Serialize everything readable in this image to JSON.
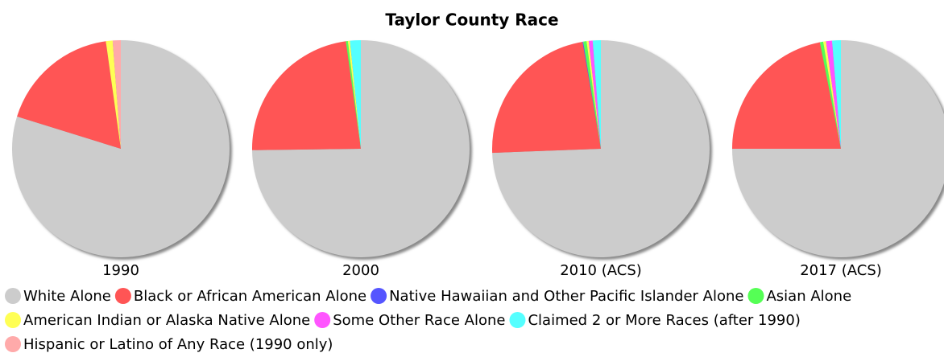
{
  "chart_data": {
    "type": "pie",
    "title": "Taylor County Race",
    "categories": [
      "White Alone",
      "Black or African American Alone",
      "Native Hawaiian and Other Pacific Islander Alone",
      "Asian Alone",
      "American Indian or Alaska Native Alone",
      "Some Other Race Alone",
      "Claimed 2 or More Races (after 1990)",
      "Hispanic or Latino of Any Race (1990 only)"
    ],
    "colors": [
      "#cccccc",
      "#ff5555",
      "#5555ff",
      "#55ff55",
      "#ffff55",
      "#ff55ff",
      "#55ffff",
      "#ffaaaa"
    ],
    "series": [
      {
        "name": "1990",
        "values": [
          79.8,
          18.0,
          null,
          null,
          1.0,
          null,
          null,
          1.2
        ]
      },
      {
        "name": "2000",
        "values": [
          74.8,
          23.0,
          null,
          0.3,
          0.3,
          null,
          1.6,
          null
        ]
      },
      {
        "name": "2010 (ACS)",
        "values": [
          74.4,
          22.9,
          0.1,
          0.5,
          0.3,
          0.6,
          1.2,
          null
        ]
      },
      {
        "name": "2017 (ACS)",
        "values": [
          75.0,
          21.9,
          null,
          0.5,
          0.4,
          0.9,
          1.3,
          null
        ]
      }
    ]
  }
}
